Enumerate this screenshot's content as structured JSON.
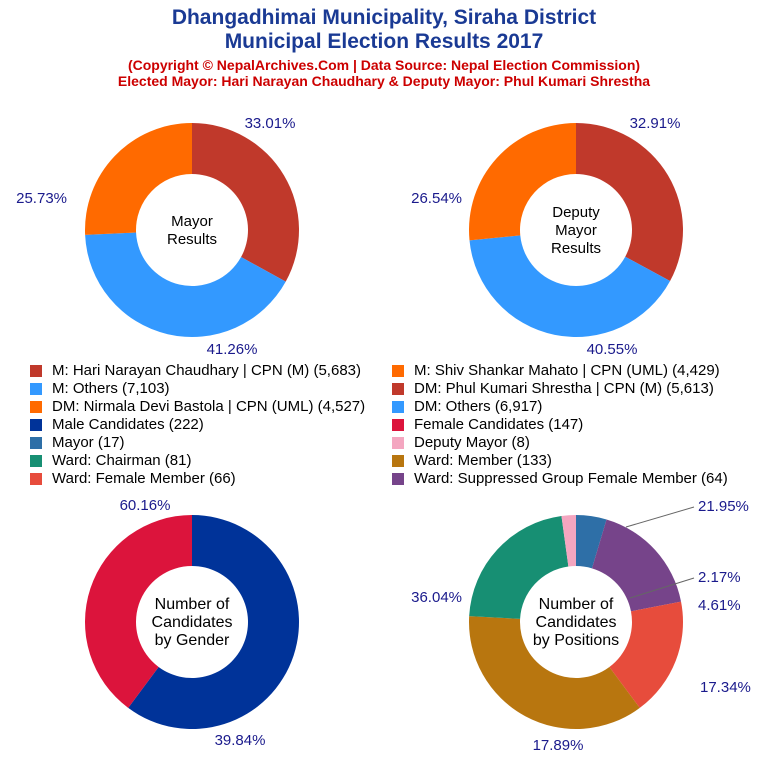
{
  "header": {
    "title_line1": "Dhangadhimai Municipality, Siraha District",
    "title_line2": "Municipal Election Results 2017",
    "subtitle_line1": "(Copyright © NepalArchives.Com | Data Source: Nepal Election Commission)",
    "subtitle_line2": "Elected Mayor: Hari Narayan Chaudhary & Deputy Mayor: Phul Kumari Shrestha"
  },
  "colors": {
    "title": "#1a3a94",
    "subtitle": "#cc0000",
    "percent_label": "#1a1a8c"
  },
  "legend": [
    {
      "label": "M: Hari Narayan Chaudhary | CPN (M) (5,683)",
      "color": "#c0392b"
    },
    {
      "label": "M: Shiv Shankar Mahato | CPN (UML) (4,429)",
      "color": "#ff6a00"
    },
    {
      "label": "M: Others (7,103)",
      "color": "#3399ff"
    },
    {
      "label": "DM: Phul Kumari Shrestha | CPN (M) (5,613)",
      "color": "#c0392b"
    },
    {
      "label": "DM: Nirmala Devi Bastola | CPN (UML) (4,527)",
      "color": "#ff6a00"
    },
    {
      "label": "DM: Others (6,917)",
      "color": "#3399ff"
    },
    {
      "label": "Male Candidates (222)",
      "color": "#003399"
    },
    {
      "label": "Female Candidates (147)",
      "color": "#dc143c"
    },
    {
      "label": "Mayor (17)",
      "color": "#2e6fa7"
    },
    {
      "label": "Deputy Mayor (8)",
      "color": "#f4a6c0"
    },
    {
      "label": "Ward: Chairman (81)",
      "color": "#178f73"
    },
    {
      "label": "Ward: Member (133)",
      "color": "#b8760f"
    },
    {
      "label": "Ward: Female Member (66)",
      "color": "#e74c3c"
    },
    {
      "label": "Ward: Suppressed Group Female Member (64)",
      "color": "#76448a"
    }
  ],
  "chart_data": [
    {
      "type": "pie",
      "center_label": [
        "Mayor",
        "Results"
      ],
      "slices": [
        {
          "name": "M: Hari Narayan Chaudhary | CPN (M)",
          "value": 5683,
          "percent_label": "33.01%",
          "color": "#c0392b"
        },
        {
          "name": "M: Others",
          "value": 7103,
          "percent_label": "41.26%",
          "color": "#3399ff"
        },
        {
          "name": "M: Shiv Shankar Mahato | CPN (UML)",
          "value": 4429,
          "percent_label": "25.73%",
          "color": "#ff6a00"
        }
      ]
    },
    {
      "type": "pie",
      "center_label": [
        "Deputy",
        "Mayor",
        "Results"
      ],
      "slices": [
        {
          "name": "DM: Phul Kumari Shrestha | CPN (M)",
          "value": 5613,
          "percent_label": "32.91%",
          "color": "#c0392b"
        },
        {
          "name": "DM: Others",
          "value": 6917,
          "percent_label": "40.55%",
          "color": "#3399ff"
        },
        {
          "name": "DM: Nirmala Devi Bastola | CPN (UML)",
          "value": 4527,
          "percent_label": "26.54%",
          "color": "#ff6a00"
        }
      ]
    },
    {
      "type": "pie",
      "center_label": [
        "Number of",
        "Candidates",
        "by Gender"
      ],
      "slices": [
        {
          "name": "Male Candidates",
          "value": 222,
          "percent_label": "60.16%",
          "color": "#003399"
        },
        {
          "name": "Female Candidates",
          "value": 147,
          "percent_label": "39.84%",
          "color": "#dc143c"
        }
      ]
    },
    {
      "type": "pie",
      "center_label": [
        "Number of",
        "Candidates",
        "by Positions"
      ],
      "slices": [
        {
          "name": "Mayor",
          "value": 17,
          "percent_label": "4.61%",
          "color": "#2e6fa7"
        },
        {
          "name": "Ward: Suppressed Group Female Member",
          "value": 64,
          "percent_label": "17.34%",
          "color": "#76448a"
        },
        {
          "name": "Ward: Female Member",
          "value": 66,
          "percent_label": "17.89%",
          "color": "#e74c3c"
        },
        {
          "name": "Ward: Member",
          "value": 133,
          "percent_label": "36.04%",
          "color": "#b8760f"
        },
        {
          "name": "Ward: Chairman",
          "value": 81,
          "percent_label": "21.95%",
          "color": "#178f73"
        },
        {
          "name": "Deputy Mayor",
          "value": 8,
          "percent_label": "2.17%",
          "color": "#f4a6c0"
        }
      ]
    }
  ]
}
